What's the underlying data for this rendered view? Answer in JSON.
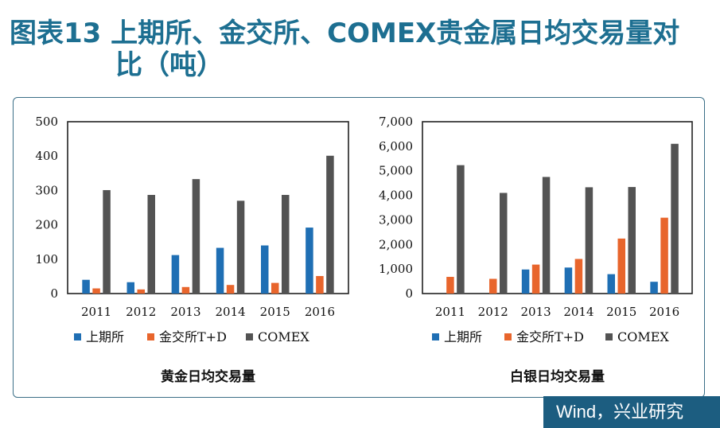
{
  "title": {
    "line1": "图表13  上期所、金交所、COMEX贵金属日均交易量对",
    "line2": "比（吨）"
  },
  "footer": {
    "text": "Wind，兴业研究"
  },
  "colors": {
    "shfe": "#1f6fb4",
    "sge": "#e8652c",
    "comex": "#535353"
  },
  "chart_data": [
    {
      "type": "bar",
      "title": "黄金日均交易量",
      "categories": [
        "2011",
        "2012",
        "2013",
        "2014",
        "2015",
        "2016"
      ],
      "ylim": [
        0,
        500
      ],
      "yticks": [
        0,
        100,
        200,
        300,
        400,
        500
      ],
      "ytick_labels": [
        "0",
        "100",
        "200",
        "300",
        "400",
        "500"
      ],
      "grid": false,
      "legend": "bottom",
      "series": [
        {
          "name": "上期所",
          "values": [
            40,
            33,
            112,
            133,
            140,
            192
          ]
        },
        {
          "name": "金交所T+D",
          "values": [
            15,
            12,
            19,
            25,
            31,
            51
          ]
        },
        {
          "name": "COMEX",
          "values": [
            301,
            287,
            333,
            270,
            287,
            401
          ]
        }
      ]
    },
    {
      "type": "bar",
      "title": "白银日均交易量",
      "categories": [
        "2011",
        "2012",
        "2013",
        "2014",
        "2015",
        "2016"
      ],
      "ylim": [
        0,
        7000
      ],
      "yticks": [
        0,
        1000,
        2000,
        3000,
        4000,
        5000,
        6000,
        7000
      ],
      "ytick_labels": [
        "0",
        "1,000",
        "2,000",
        "3,000",
        "4,000",
        "5,000",
        "6,000",
        "7,000"
      ],
      "grid": false,
      "legend": "bottom",
      "series": [
        {
          "name": "上期所",
          "values": [
            0,
            0,
            980,
            1060,
            790,
            480
          ]
        },
        {
          "name": "金交所T+D",
          "values": [
            680,
            600,
            1180,
            1410,
            2240,
            3090
          ]
        },
        {
          "name": "COMEX",
          "values": [
            5230,
            4100,
            4750,
            4330,
            4340,
            6100
          ]
        }
      ]
    }
  ]
}
